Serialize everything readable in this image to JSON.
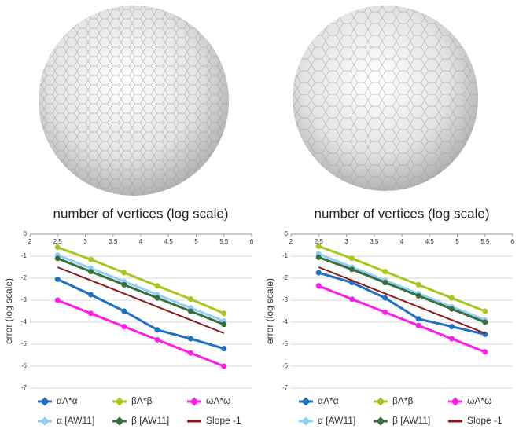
{
  "chart_data": [
    {
      "type": "line",
      "title": "number of vertices (log scale)",
      "y_label": "error (log scale)",
      "x": [
        2.5,
        3.1,
        3.7,
        4.3,
        4.9,
        5.5
      ],
      "xlim": [
        2,
        6
      ],
      "xticks": [
        2,
        2.5,
        3,
        3.5,
        4,
        4.5,
        5,
        5.5,
        6
      ],
      "ylim": [
        -7,
        0
      ],
      "yticks": [
        0,
        -1,
        -2,
        -3,
        -4,
        -5,
        -6,
        -7
      ],
      "grid": true,
      "series": [
        {
          "name": "αΛ*α",
          "color": "#1f6fc5",
          "markers": true,
          "values": [
            -2.05,
            -2.75,
            -3.5,
            -4.35,
            -4.75,
            -5.2
          ]
        },
        {
          "name": "βΛ*β",
          "color": "#a6c81e",
          "markers": true,
          "values": [
            -0.6,
            -1.15,
            -1.75,
            -2.35,
            -2.95,
            -3.6
          ]
        },
        {
          "name": "ωΛ*ω",
          "color": "#ff1ee6",
          "markers": true,
          "values": [
            -3.0,
            -3.6,
            -4.2,
            -4.8,
            -5.4,
            -6.0
          ]
        },
        {
          "name": "α [AW11]",
          "color": "#8fd0f5",
          "markers": true,
          "values": [
            -0.95,
            -1.55,
            -2.15,
            -2.75,
            -3.35,
            -3.95
          ]
        },
        {
          "name": "β [AW11]",
          "color": "#3c6e3c",
          "markers": true,
          "values": [
            -1.1,
            -1.7,
            -2.3,
            -2.9,
            -3.5,
            -4.1
          ]
        },
        {
          "name": "Slope -1",
          "color": "#8b1a1a",
          "markers": false,
          "values": [
            -1.5,
            -2.1,
            -2.7,
            -3.3,
            -3.9,
            -4.5
          ]
        }
      ]
    },
    {
      "type": "line",
      "title": "number of vertices (log scale)",
      "y_label": "error (log scale)",
      "x": [
        2.5,
        3.1,
        3.7,
        4.3,
        4.9,
        5.5
      ],
      "xlim": [
        2,
        6
      ],
      "xticks": [
        2,
        2.5,
        3,
        3.5,
        4,
        4.5,
        5,
        5.5,
        6
      ],
      "ylim": [
        -7,
        0
      ],
      "yticks": [
        0,
        -1,
        -2,
        -3,
        -4,
        -5,
        -6,
        -7
      ],
      "grid": true,
      "series": [
        {
          "name": "αΛ*α",
          "color": "#1f6fc5",
          "markers": true,
          "values": [
            -1.75,
            -2.2,
            -2.9,
            -3.85,
            -4.2,
            -4.55
          ]
        },
        {
          "name": "βΛ*β",
          "color": "#a6c81e",
          "markers": true,
          "values": [
            -0.55,
            -1.1,
            -1.7,
            -2.3,
            -2.9,
            -3.5
          ]
        },
        {
          "name": "ωΛ*ω",
          "color": "#ff1ee6",
          "markers": true,
          "values": [
            -2.35,
            -2.95,
            -3.55,
            -4.15,
            -4.75,
            -5.35
          ]
        },
        {
          "name": "α [AW11]",
          "color": "#8fd0f5",
          "markers": true,
          "values": [
            -0.9,
            -1.5,
            -2.1,
            -2.7,
            -3.3,
            -3.9
          ]
        },
        {
          "name": "β [AW11]",
          "color": "#3c6e3c",
          "markers": true,
          "values": [
            -1.05,
            -1.6,
            -2.2,
            -2.8,
            -3.4,
            -4.0
          ]
        },
        {
          "name": "Slope -1",
          "color": "#8b1a1a",
          "markers": false,
          "values": [
            -1.5,
            -2.1,
            -2.7,
            -3.3,
            -3.9,
            -4.5
          ]
        }
      ]
    }
  ]
}
